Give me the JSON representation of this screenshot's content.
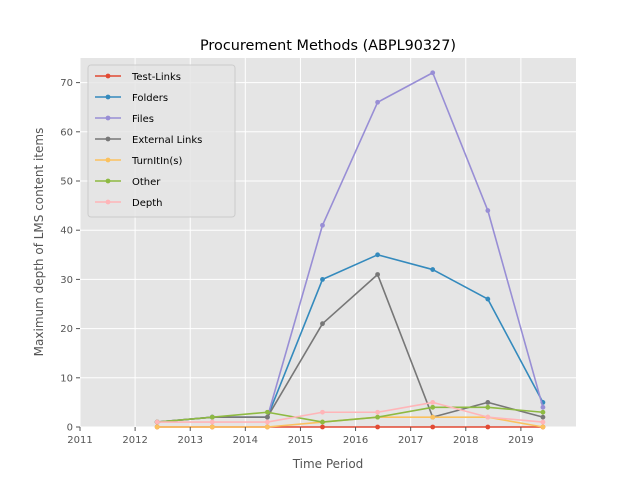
{
  "chart_data": {
    "type": "line",
    "title": "Procurement Methods (ABPL90327)",
    "xlabel": "Time Period",
    "ylabel": "Maximum depth of LMS content items",
    "xlim": [
      2011,
      2020
    ],
    "ylim": [
      0,
      75
    ],
    "x_ticks": [
      "2011",
      "2012",
      "2013",
      "2014",
      "2015",
      "2016",
      "2017",
      "2018",
      "2019"
    ],
    "y_ticks": [
      "0",
      "10",
      "20",
      "30",
      "40",
      "50",
      "60",
      "70"
    ],
    "grid": true,
    "legend_position": "upper-left",
    "x": [
      2012.4,
      2013.4,
      2014.4,
      2015.4,
      2016.4,
      2017.4,
      2018.4,
      2019.4
    ],
    "series": [
      {
        "name": "Test-Links",
        "color": "#E24A33",
        "values": [
          0,
          0,
          0,
          0,
          0,
          0,
          0,
          0
        ]
      },
      {
        "name": "Folders",
        "color": "#348ABD",
        "values": [
          1,
          2,
          2,
          30,
          35,
          32,
          26,
          5
        ]
      },
      {
        "name": "Files",
        "color": "#988ED5",
        "values": [
          1,
          2,
          2,
          41,
          66,
          72,
          44,
          4
        ]
      },
      {
        "name": "External Links",
        "color": "#777777",
        "values": [
          1,
          2,
          2,
          21,
          31,
          2,
          5,
          2
        ]
      },
      {
        "name": "TurnItIn(s)",
        "color": "#FBC15E",
        "values": [
          0,
          0,
          0,
          1,
          2,
          2,
          2,
          0
        ]
      },
      {
        "name": "Other",
        "color": "#8EBA42",
        "values": [
          1,
          2,
          3,
          1,
          2,
          4,
          4,
          3
        ]
      },
      {
        "name": "Depth",
        "color": "#FFB5B8",
        "values": [
          1,
          1,
          1,
          3,
          3,
          5,
          2,
          1
        ]
      }
    ]
  }
}
